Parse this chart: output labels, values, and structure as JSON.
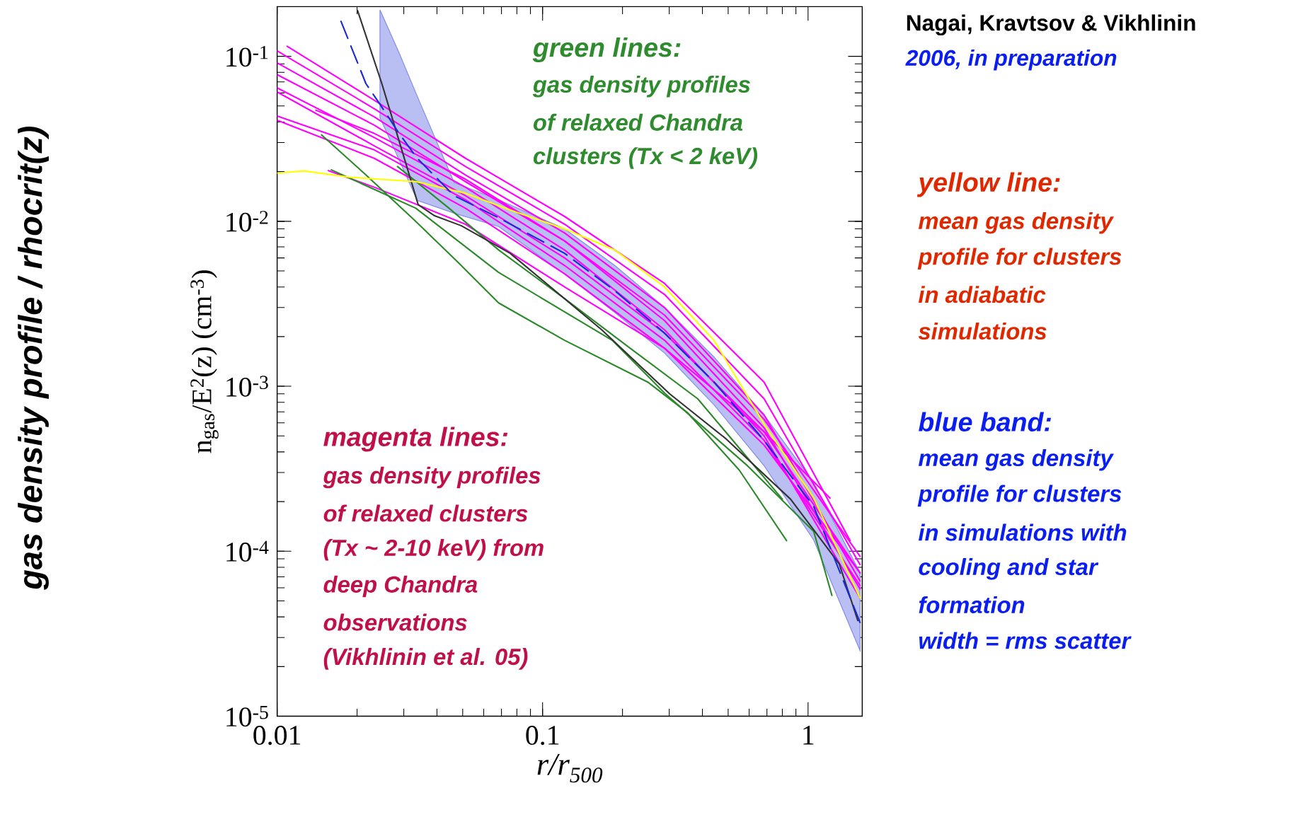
{
  "chart_data": {
    "type": "line",
    "log": "xy",
    "grid": false,
    "marker": "none",
    "xlabel": "r/r$_{500}$",
    "ylabel": "n$_{gas}$/E$^{2}$(z)  (cm$^{-3}$)",
    "xlim": [
      0.01,
      1.6
    ],
    "ylim": [
      1e-05,
      0.2
    ],
    "xticks": [
      0.01,
      0.1,
      1
    ],
    "yticks": [
      {
        "value": 1e-05,
        "label": "10$^{-5}$"
      },
      {
        "value": 0.0001,
        "label": "10$^{-4}$"
      },
      {
        "value": 0.001,
        "label": "10$^{-3}$"
      },
      {
        "value": 0.01,
        "label": "10$^{-2}$"
      },
      {
        "value": 0.1,
        "label": "10$^{-1}$"
      }
    ],
    "series": [
      {
        "color": "#ff00ff",
        "x": [
          0.0109,
          0.0232,
          0.0512,
          0.121,
          0.288,
          0.683,
          1.44
        ],
        "values": [
          0.115,
          0.0542,
          0.0241,
          0.0107,
          0.0042,
          0.00106,
          0.000116
        ]
      },
      {
        "color": "#ff00ff",
        "x": [
          0.01,
          0.0232,
          0.0512,
          0.121,
          0.288,
          0.683,
          1.57
        ],
        "values": [
          0.108,
          0.0482,
          0.0215,
          0.0096,
          0.0036,
          0.00084,
          8.3e-05
        ]
      },
      {
        "color": "#ff00ff",
        "x": [
          0.01,
          0.0232,
          0.0512,
          0.121,
          0.288,
          0.683,
          1.57
        ],
        "values": [
          0.0912,
          0.043,
          0.0191,
          0.0085,
          0.003,
          0.00067,
          6.6e-05
        ]
      },
      {
        "color": "#ff00ff",
        "x": [
          0.01,
          0.0232,
          0.0512,
          0.121,
          0.288,
          0.683,
          1.57
        ],
        "values": [
          0.0775,
          0.0383,
          0.0174,
          0.0076,
          0.0025,
          0.00056,
          5.9e-05
        ]
      },
      {
        "color": "#ff00ff",
        "x": [
          0.01,
          0.0232,
          0.0512,
          0.121,
          0.288,
          0.683,
          1.57
        ],
        "values": [
          0.0644,
          0.0322,
          0.0161,
          0.0067,
          0.0022,
          0.0005,
          5.2e-05
        ]
      },
      {
        "color": "#ff00ff",
        "x": [
          0.01,
          0.0232,
          0.0512,
          0.121,
          0.288,
          0.683,
          1.57
        ],
        "values": [
          0.0608,
          0.0287,
          0.0143,
          0.006,
          0.0021,
          0.00053,
          7.4e-05
        ]
      },
      {
        "color": "#ff00ff",
        "x": [
          0.01,
          0.0232,
          0.0512,
          0.121,
          0.288,
          0.683,
          1.57
        ],
        "values": [
          0.0435,
          0.0271,
          0.0135,
          0.0054,
          0.0019,
          0.00047,
          6.2e-05
        ]
      },
      {
        "color": "#ff00ff",
        "x": [
          0.01,
          0.0232,
          0.0512,
          0.121,
          0.288,
          0.683,
          1.57
        ],
        "values": [
          0.041,
          0.0241,
          0.012,
          0.0048,
          0.0017,
          0.00044,
          7.4e-05
        ]
      },
      {
        "color": "#ff00ff",
        "x": [
          0.014,
          0.0232,
          0.0512,
          0.121,
          0.288,
          0.683,
          1.57
        ],
        "values": [
          0.0471,
          0.0341,
          0.018,
          0.0076,
          0.0027,
          0.00063,
          9.3e-05
        ]
      },
      {
        "color": "#ff00ff",
        "x": [
          0.0156,
          0.0232,
          0.0512,
          0.121,
          0.288,
          0.683,
          1.21
        ],
        "values": [
          0.0203,
          0.0161,
          0.0096,
          0.004,
          0.0017,
          0.00053,
          0.00021
        ]
      },
      {
        "color": "#2a8a2a",
        "x": [
          0.0147,
          0.0216,
          0.0328,
          0.0477,
          0.0683,
          0.121,
          0.249,
          0.352,
          0.551,
          0.83
        ],
        "values": [
          0.0334,
          0.0191,
          0.0102,
          0.0057,
          0.0032,
          0.0019,
          0.00106,
          0.00069,
          0.00031,
          0.000116
        ]
      },
      {
        "color": "#2a8a2a",
        "x": [
          0.016,
          0.0333,
          0.0683,
          0.183,
          0.29,
          0.591,
          1.05,
          1.23
        ],
        "values": [
          0.0205,
          0.012,
          0.0049,
          0.0019,
          0.0009,
          0.00033,
          0.000132,
          5.4e-05
        ]
      },
      {
        "color": "#2a8a2a",
        "x": [
          0.0284,
          0.0444,
          0.0683,
          0.121,
          0.216,
          0.384,
          0.8
        ],
        "values": [
          0.0215,
          0.012,
          0.0067,
          0.0034,
          0.00168,
          0.00084,
          0.000207
        ]
      },
      {
        "color": "#333333",
        "x": [
          0.0201,
          0.0248,
          0.0274,
          0.034,
          0.0392,
          0.0494,
          0.0755,
          0.167,
          0.301,
          0.491,
          0.859,
          1.31,
          1.54
        ],
        "values": [
          0.189,
          0.0683,
          0.0401,
          0.0126,
          0.0108,
          0.0094,
          0.0064,
          0.0022,
          0.0009,
          0.00048,
          0.000207,
          8.4e-05,
          3.8e-05
        ]
      },
      {
        "color": "#ffff00",
        "x": [
          0.01,
          0.0126,
          0.0187,
          0.0333,
          0.0512,
          0.0789,
          0.121,
          0.187,
          0.288,
          0.443,
          0.683,
          1.05,
          1.57
        ],
        "values": [
          0.0196,
          0.0202,
          0.0185,
          0.0174,
          0.0148,
          0.0114,
          0.009,
          0.0067,
          0.004,
          0.00189,
          0.00059,
          0.00021,
          5.2e-05
        ]
      },
      {
        "color": "#1a2ad8",
        "line_style": "dashed",
        "x": [
          0.0174,
          0.0216,
          0.0244,
          0.0288,
          0.0337,
          0.0464,
          0.0683,
          0.121,
          0.187,
          0.288,
          0.443,
          0.683,
          1.05,
          1.57
        ],
        "values": [
          0.163,
          0.0683,
          0.0512,
          0.0341,
          0.0241,
          0.0143,
          0.0105,
          0.0064,
          0.0038,
          0.0021,
          0.00106,
          0.00047,
          0.000187,
          3.7e-05
        ],
        "lower": [
          null,
          null,
          0.0425,
          0.0236,
          0.0134,
          0.0112,
          0.0093,
          0.0048,
          0.0028,
          0.00159,
          0.00077,
          0.00033,
          0.000117,
          2.5e-05
        ],
        "upper": [
          null,
          null,
          0.191,
          0.105,
          0.0574,
          0.0172,
          0.0135,
          0.009,
          0.0054,
          0.003,
          0.0015,
          0.00067,
          0.00026,
          7.4e-05
        ]
      }
    ],
    "annotations": [
      "gas density profile / rhocrit(z)",
      "Nagai, Kravtsov & Vikhlinin",
      "2006, in preparation",
      "green lines:",
      "gas density profiles",
      "of relaxed Chandra",
      "clusters (Tx < 2 keV)",
      "yellow line:",
      "mean gas density",
      "profile for clusters",
      "in adiabatic",
      "simulations",
      "blue band:",
      "mean gas density",
      "profile for clusters",
      "in simulations with",
      "cooling and star",
      "formation",
      "width = rms scatter",
      "magenta lines:",
      "gas density profiles",
      "of relaxed clusters",
      "(Tx ~ 2-10 keV) from",
      "deep Chandra",
      "observations",
      "(Vikhlinin et al. 05)"
    ]
  }
}
